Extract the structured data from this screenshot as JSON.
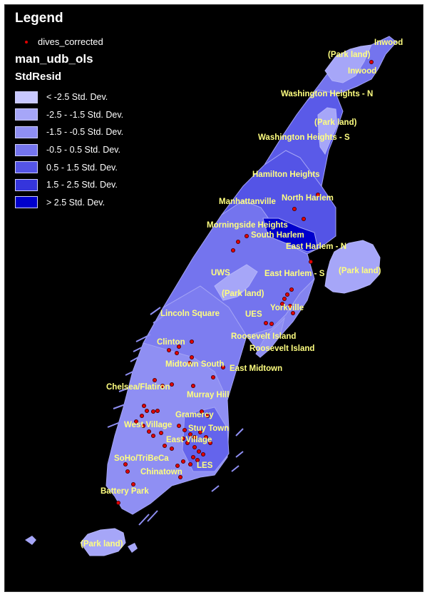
{
  "legend": {
    "title": "Legend",
    "points_layer": "dives_corrected",
    "layer_name": "man_udb_ols",
    "field_name": "StdResid",
    "classes": [
      {
        "label": "< -2.5 Std. Dev.",
        "color": "#c8c8ff"
      },
      {
        "label": "-2.5 - -1.5 Std. Dev.",
        "color": "#a6a6f8"
      },
      {
        "label": "-1.5 - -0.5 Std. Dev.",
        "color": "#8f8ff3"
      },
      {
        "label": "-0.5 - 0.5 Std. Dev.",
        "color": "#7474ee"
      },
      {
        "label": "0.5 - 1.5 Std. Dev.",
        "color": "#5454e6"
      },
      {
        "label": "1.5 - 2.5 Std. Dev.",
        "color": "#3535dc"
      },
      {
        "label": "> 2.5 Std. Dev.",
        "color": "#0000cc"
      }
    ]
  },
  "colors": {
    "background": "#000000",
    "label": "#ffff80",
    "point": "#e00000"
  },
  "labels": {
    "inwood_a": "Inwood",
    "inwood_b": "Inwood",
    "park_1": "(Park land)",
    "park_2": "(Park land)",
    "park_3": "(Park land)",
    "park_4": "(Park land)",
    "park_5": "(Park land)",
    "wash_n": "Washington Heights - N",
    "wash_s": "Washington Heights - S",
    "hamilton": "Hamilton Heights",
    "manhattanville": "Manhattanville",
    "north_harlem": "North Harlem",
    "morningside": "Morningside Heights",
    "south_harlem": "South Harlem",
    "east_harlem_n": "East Harlem - N",
    "east_harlem_s": "East Harlem - S",
    "uws": "UWS",
    "lincoln": "Lincoln Square",
    "ues": "UES",
    "yorkville": "Yorkville",
    "roosevelt_1": "Roosevelt Island",
    "roosevelt_2": "Roosevelt Island",
    "clinton": "Clinton",
    "midtown_south": "Midtown South",
    "east_midtown": "East Midtown",
    "chelsea": "Chelsea/Flatiron",
    "murray": "Murray Hill",
    "gramercy": "Gramercy",
    "west_village": "West Village",
    "stuy": "Stuy Town",
    "east_village": "East Village",
    "soho": "SoHo/TriBeCa",
    "chinatown": "Chinatown",
    "les": "LES",
    "battery": "Battery Park"
  }
}
